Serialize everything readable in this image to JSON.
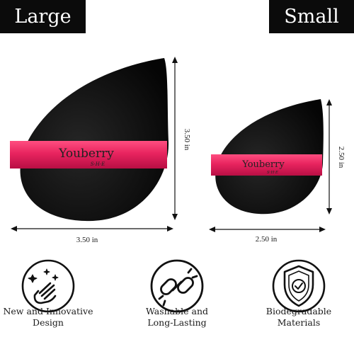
{
  "labels": {
    "large": "Large",
    "small": "Small"
  },
  "large_puff": {
    "brand": "Youberry",
    "brand_sub": "S·H·E",
    "height": "3.50 in",
    "width": "3.50 in"
  },
  "small_puff": {
    "brand": "Youberry",
    "brand_sub": "S·H·E",
    "height": "2.50 in",
    "width": "2.50 in"
  },
  "features": [
    {
      "line1": "New and Innovative",
      "line2": "Design",
      "icon": "sparkle-finger-icon"
    },
    {
      "line1": "Washable and",
      "line2": "Long-Lasting",
      "icon": "chain-link-icon"
    },
    {
      "line1": "Biodegradable",
      "line2": "Materials",
      "icon": "shield-check-icon"
    }
  ],
  "colors": {
    "puff": "#0c0c0c",
    "ribbon": "#e8245f",
    "label_bg": "#0b0b0b"
  }
}
